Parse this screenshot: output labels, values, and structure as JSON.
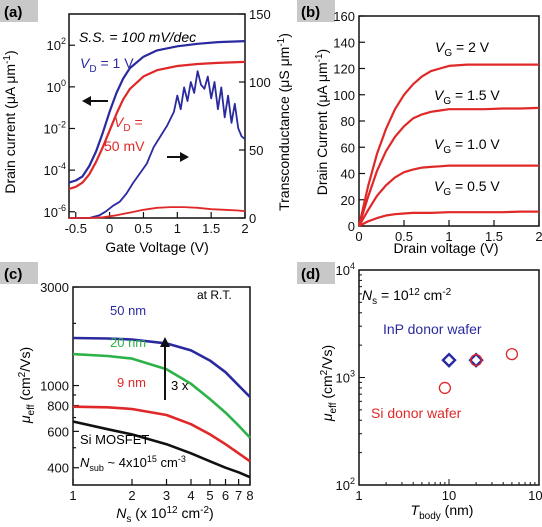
{
  "colors": {
    "blue": "#2a2aa0",
    "red": "#e02828",
    "green": "#2db24a",
    "black": "#111111",
    "panel_label_bg": "#c8c8c8"
  },
  "panels": {
    "a": {
      "label": "(a)",
      "annotation": "S.S. = 100 mV/dec",
      "vd1": "V_D = 1 V",
      "vd50": "V_D = 50 mV",
      "xlabel": "Gate Voltage (V)",
      "ylabel": "Drain current (μA μm⁻¹)",
      "y2label": "Transconductance (μS μm⁻¹)"
    },
    "b": {
      "label": "(b)",
      "xlabel": "Drain voltage (V)",
      "ylabel": "Drain Current (μA μm⁻¹)"
    },
    "c": {
      "label": "(c)",
      "annotation_rt": "at R.T.",
      "factor": "3 x",
      "mosfet": "Si MOSFET",
      "nsub": "N_sub ~ 4x10¹⁵ cm⁻³",
      "xlabel": "N_s (x 10¹² cm⁻²)",
      "ylabel": "μ_eff (cm²/Vs)"
    },
    "d": {
      "label": "(d)",
      "annotation_ns": "N_s = 10¹² cm⁻²",
      "inp": "InP donor wafer",
      "si": "Si donor wafer",
      "xlabel": "T_body (nm)",
      "ylabel": "μ_eff (cm²/Vs)"
    }
  },
  "chart_data": [
    {
      "panel": "a",
      "type": "line",
      "xlabel": "Gate Voltage (V)",
      "xlim": [
        -0.6,
        2.0
      ],
      "xticks": [
        -0.5,
        0,
        0.5,
        1,
        1.5,
        2
      ],
      "ylabel": "Drain current (μA μm⁻¹)",
      "ylim_log": [
        -6.3,
        3.5
      ],
      "yticks_log": [
        -6,
        -4,
        -2,
        0,
        2
      ],
      "y2label": "Transconductance (μS μm⁻¹)",
      "y2lim": [
        0,
        150
      ],
      "y2ticks": [
        0,
        50,
        100,
        150
      ],
      "series": [
        {
          "name": "V_D = 1 V",
          "axis": "left",
          "color": "blue",
          "x": [
            -0.6,
            -0.5,
            -0.4,
            -0.3,
            -0.2,
            -0.1,
            0,
            0.1,
            0.2,
            0.3,
            0.5,
            0.7,
            1.0,
            1.3,
            1.6,
            2.0
          ],
          "y_log": [
            -4.6,
            -4.5,
            -4.3,
            -3.8,
            -3.1,
            -2.2,
            -1.2,
            -0.3,
            0.4,
            0.9,
            1.45,
            1.75,
            1.95,
            2.07,
            2.15,
            2.2
          ]
        },
        {
          "name": "V_D = 50 mV",
          "axis": "left",
          "color": "red",
          "x": [
            -0.6,
            -0.5,
            -0.4,
            -0.3,
            -0.2,
            -0.1,
            0,
            0.1,
            0.2,
            0.3,
            0.5,
            0.7,
            1.0,
            1.3,
            1.6,
            2.0
          ],
          "y_log": [
            -4.9,
            -4.8,
            -4.6,
            -4.2,
            -3.6,
            -2.9,
            -2.1,
            -1.3,
            -0.6,
            -0.1,
            0.5,
            0.8,
            1.0,
            1.1,
            1.15,
            1.2
          ]
        },
        {
          "name": "gm, V_D = 1 V",
          "axis": "right",
          "color": "blue",
          "x": [
            -0.6,
            -0.3,
            -0.15,
            -0.05,
            0.05,
            0.15,
            0.25,
            0.35,
            0.45,
            0.55,
            0.65,
            0.75,
            0.85,
            0.95,
            1.0,
            1.05,
            1.1,
            1.15,
            1.2,
            1.25,
            1.3,
            1.35,
            1.4,
            1.45,
            1.5,
            1.55,
            1.6,
            1.65,
            1.7,
            1.75,
            1.8,
            1.85,
            1.9,
            1.95,
            2.0
          ],
          "y": [
            0,
            0,
            2,
            5,
            9,
            12,
            18,
            26,
            33,
            40,
            52,
            60,
            68,
            78,
            90,
            80,
            96,
            86,
            100,
            92,
            108,
            98,
            95,
            104,
            88,
            100,
            80,
            96,
            74,
            90,
            70,
            84,
            66,
            60,
            58
          ]
        },
        {
          "name": "gm, V_D = 50 mV",
          "axis": "right",
          "color": "red",
          "x": [
            -0.6,
            -0.3,
            -0.1,
            0.1,
            0.3,
            0.5,
            0.7,
            0.9,
            1.1,
            1.3,
            1.5,
            1.7,
            1.9,
            2.0
          ],
          "y": [
            0,
            0,
            0.5,
            2,
            4,
            6,
            7.5,
            8,
            8,
            7.5,
            6.5,
            6,
            5.5,
            5
          ]
        }
      ]
    },
    {
      "panel": "b",
      "type": "line",
      "xlabel": "Drain voltage (V)",
      "xlim": [
        0,
        2
      ],
      "xticks": [
        0,
        0.5,
        1,
        1.5,
        2
      ],
      "ylabel": "Drain Current (μA μm⁻¹)",
      "ylim": [
        0,
        160
      ],
      "yticks": [
        0,
        20,
        40,
        60,
        80,
        100,
        120,
        140,
        160
      ],
      "series": [
        {
          "name": "V_G = 2 V",
          "color": "red",
          "x": [
            0,
            0.1,
            0.2,
            0.3,
            0.4,
            0.5,
            0.6,
            0.7,
            0.8,
            0.9,
            1.0,
            1.2,
            1.4,
            1.6,
            1.8,
            2.0
          ],
          "y": [
            0,
            30,
            55,
            74,
            89,
            100,
            108,
            114,
            118,
            120,
            122,
            123,
            123,
            123,
            123,
            123
          ]
        },
        {
          "name": "V_G = 1.5 V",
          "color": "red",
          "x": [
            0,
            0.1,
            0.2,
            0.3,
            0.4,
            0.5,
            0.6,
            0.7,
            0.8,
            0.9,
            1.0,
            1.2,
            1.4,
            1.6,
            1.8,
            2.0
          ],
          "y": [
            0,
            22,
            42,
            57,
            68,
            76,
            82,
            85,
            87,
            88,
            89,
            89,
            89,
            89.5,
            89.5,
            90
          ]
        },
        {
          "name": "V_G = 1.0 V",
          "color": "red",
          "x": [
            0,
            0.1,
            0.2,
            0.3,
            0.4,
            0.5,
            0.6,
            0.7,
            0.8,
            0.9,
            1.0,
            1.2,
            1.4,
            1.6,
            1.8,
            2.0
          ],
          "y": [
            0,
            12,
            23,
            31,
            37,
            41,
            43,
            44.5,
            45,
            45.5,
            46,
            46,
            46,
            46,
            46,
            46
          ]
        },
        {
          "name": "V_G = 0.5 V",
          "color": "red",
          "x": [
            0,
            0.1,
            0.2,
            0.3,
            0.4,
            0.5,
            0.6,
            0.8,
            1.0,
            1.2,
            1.4,
            1.6,
            1.8,
            2.0
          ],
          "y": [
            0,
            3.5,
            6,
            8,
            9,
            9.5,
            10,
            10,
            10.5,
            10.5,
            10.5,
            10.5,
            11,
            11
          ]
        }
      ]
    },
    {
      "panel": "c",
      "type": "line",
      "xlabel": "N_s (x 10¹² cm⁻²)",
      "xscale": "log",
      "xlim": [
        1,
        8
      ],
      "xticks": [
        1,
        2,
        3,
        4,
        5,
        6,
        7,
        8
      ],
      "ylabel": "μ_eff (cm²/Vs)",
      "yscale": "log",
      "ylim": [
        330,
        3000
      ],
      "yticks": [
        400,
        600,
        800,
        1000,
        3000
      ],
      "series": [
        {
          "name": "50 nm",
          "color": "blue",
          "x": [
            1,
            1.5,
            2,
            3,
            4,
            5,
            6,
            7,
            8
          ],
          "y": [
            1700,
            1690,
            1670,
            1600,
            1480,
            1320,
            1160,
            1000,
            880
          ]
        },
        {
          "name": "20 nm",
          "color": "green",
          "x": [
            1,
            1.5,
            2,
            3,
            4,
            5,
            6,
            7,
            8
          ],
          "y": [
            1420,
            1390,
            1350,
            1200,
            1020,
            860,
            740,
            640,
            560
          ]
        },
        {
          "name": "9 nm",
          "color": "red",
          "x": [
            1,
            1.5,
            2,
            3,
            4,
            5,
            6,
            7,
            8
          ],
          "y": [
            790,
            785,
            770,
            720,
            650,
            580,
            520,
            470,
            430
          ]
        },
        {
          "name": "Si MOSFET",
          "color": "black",
          "x": [
            1,
            1.5,
            2,
            3,
            4,
            5,
            6,
            7,
            8
          ],
          "y": [
            670,
            615,
            580,
            520,
            470,
            430,
            400,
            380,
            360
          ]
        }
      ],
      "annotations": [
        "at R.T.",
        "3 x"
      ]
    },
    {
      "panel": "d",
      "type": "scatter",
      "xlabel": "T_body (nm)",
      "xscale": "log",
      "xlim": [
        1,
        100
      ],
      "xticks": [
        1,
        10,
        100
      ],
      "ylabel": "μ_eff (cm²/Vs)",
      "yscale": "log",
      "ylim": [
        100,
        10000
      ],
      "yticks": [
        100,
        1000,
        10000
      ],
      "series": [
        {
          "name": "InP donor wafer",
          "marker": "diamond",
          "color": "blue",
          "x": [
            10,
            20
          ],
          "y": [
            1450,
            1450
          ]
        },
        {
          "name": "Si donor wafer",
          "marker": "circle",
          "color": "red",
          "x": [
            9,
            20,
            50
          ],
          "y": [
            800,
            1450,
            1650
          ]
        }
      ]
    }
  ]
}
